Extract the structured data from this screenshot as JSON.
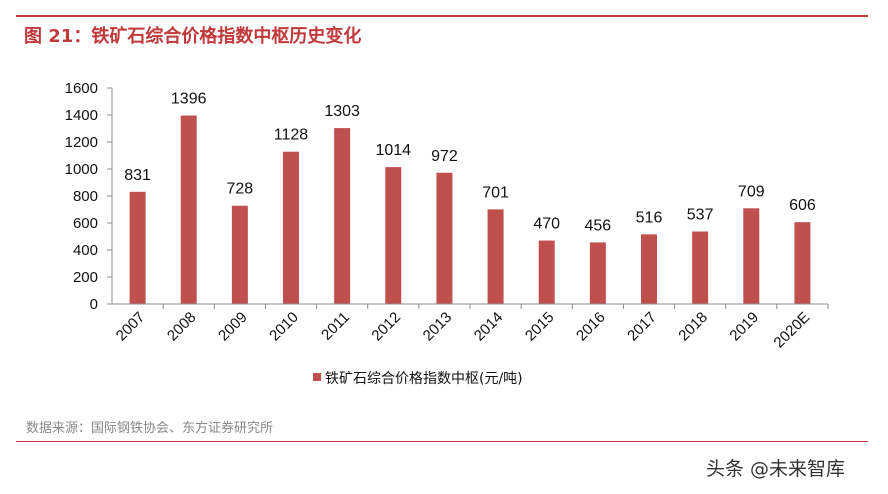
{
  "header": {
    "title": "图 21：铁矿石综合价格指数中枢历史变化"
  },
  "footer": {
    "source": "数据来源：国际钢铁协会、东方证券研究所"
  },
  "watermark": "头条 @未来智库",
  "chart_data": {
    "type": "bar",
    "categories": [
      "2007",
      "2008",
      "2009",
      "2010",
      "2011",
      "2012",
      "2013",
      "2014",
      "2015",
      "2016",
      "2017",
      "2018",
      "2019",
      "2020E"
    ],
    "series": [
      {
        "name": "铁矿石综合价格指数中枢(元/吨)",
        "values": [
          831,
          1396,
          728,
          1128,
          1303,
          1014,
          972,
          701,
          470,
          456,
          516,
          537,
          709,
          606
        ]
      }
    ],
    "data_labels": [
      "831",
      "1396",
      "728",
      "1128",
      "1303",
      "1014",
      "972",
      "701",
      "470",
      "456",
      "516",
      "537",
      "709",
      "606"
    ],
    "yticks": [
      "0",
      "200",
      "400",
      "600",
      "800",
      "1000",
      "1200",
      "1400",
      "1600"
    ],
    "ylim": [
      0,
      1600
    ],
    "grid": false,
    "legend_position": "bottom",
    "colors": {
      "bar": "#c0504d",
      "accent": "#c0393b",
      "axis": "#8c8c8c"
    }
  }
}
